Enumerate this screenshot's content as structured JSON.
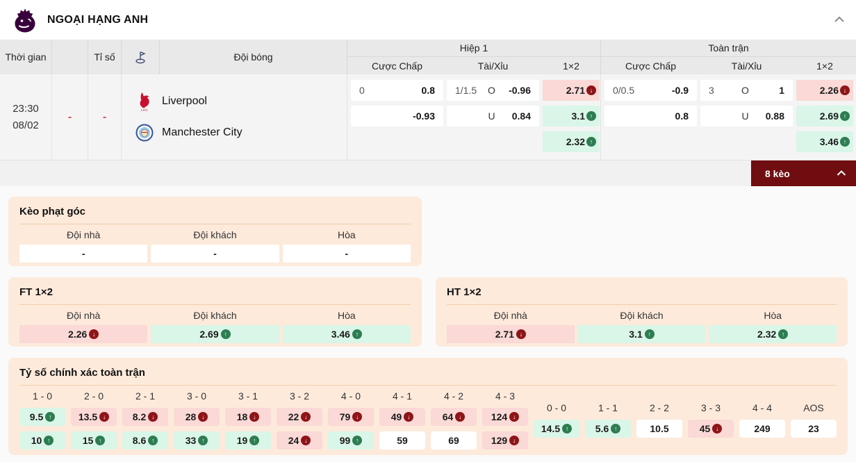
{
  "league": {
    "title": "NGOẠI HẠNG ANH"
  },
  "table": {
    "headers": {
      "time": "Thời gian",
      "score": "Tỉ số",
      "team": "Đội bóng",
      "half1": "Hiệp 1",
      "full": "Toàn trận",
      "handicap": "Cược Chấp",
      "overunder": "Tài/Xỉu",
      "onextwo": "1×2"
    },
    "match": {
      "time": "23:30",
      "date": "08/02",
      "dash1": "-",
      "dash2": "-",
      "home": "Liverpool",
      "away": "Manchester City",
      "h1": {
        "hc_line": "0",
        "hc_home": "0.8",
        "hc_away": "-0.93",
        "ou_line": "1/1.5",
        "o_label": "O",
        "o_odds": "-0.96",
        "u_label": "U",
        "u_odds": "0.84",
        "x2": [
          {
            "v": "2.71",
            "dir": "down"
          },
          {
            "v": "3.1",
            "dir": "up"
          },
          {
            "v": "2.32",
            "dir": "up"
          }
        ]
      },
      "ft": {
        "hc_line": "0/0.5",
        "hc_home": "-0.9",
        "hc_away": "0.8",
        "ou_line": "3",
        "o_label": "O",
        "o_odds": "1",
        "u_label": "U",
        "u_odds": "0.88",
        "x2": [
          {
            "v": "2.26",
            "dir": "down"
          },
          {
            "v": "2.69",
            "dir": "up"
          },
          {
            "v": "3.46",
            "dir": "up"
          }
        ]
      }
    }
  },
  "keo_bar": {
    "label": "8 kèo"
  },
  "corner": {
    "title": "Kèo phạt góc",
    "cols": {
      "home": "Đội nhà",
      "away": "Đội khách",
      "draw": "Hòa"
    },
    "values": [
      "-",
      "-",
      "-"
    ]
  },
  "ft1x2": {
    "title": "FT 1×2",
    "cols": {
      "home": "Đội nhà",
      "away": "Đội khách",
      "draw": "Hòa"
    },
    "cells": [
      {
        "v": "2.26",
        "dir": "down"
      },
      {
        "v": "2.69",
        "dir": "up"
      },
      {
        "v": "3.46",
        "dir": "up"
      }
    ]
  },
  "ht1x2": {
    "title": "HT 1×2",
    "cols": {
      "home": "Đội nhà",
      "away": "Đội khách",
      "draw": "Hòa"
    },
    "cells": [
      {
        "v": "2.71",
        "dir": "down"
      },
      {
        "v": "3.1",
        "dir": "up"
      },
      {
        "v": "2.32",
        "dir": "up"
      }
    ]
  },
  "correct_score": {
    "title": "Tỷ số chính xác toàn trận",
    "win_columns": [
      {
        "score": "1 - 0",
        "top": {
          "v": "9.5",
          "dir": "up"
        },
        "bottom": {
          "v": "10",
          "dir": "up"
        }
      },
      {
        "score": "2 - 0",
        "top": {
          "v": "13.5",
          "dir": "down"
        },
        "bottom": {
          "v": "15",
          "dir": "up"
        }
      },
      {
        "score": "2 - 1",
        "top": {
          "v": "8.2",
          "dir": "down"
        },
        "bottom": {
          "v": "8.6",
          "dir": "up"
        }
      },
      {
        "score": "3 - 0",
        "top": {
          "v": "28",
          "dir": "down"
        },
        "bottom": {
          "v": "33",
          "dir": "up"
        }
      },
      {
        "score": "3 - 1",
        "top": {
          "v": "18",
          "dir": "down"
        },
        "bottom": {
          "v": "19",
          "dir": "up"
        }
      },
      {
        "score": "3 - 2",
        "top": {
          "v": "22",
          "dir": "down"
        },
        "bottom": {
          "v": "24",
          "dir": "down"
        }
      },
      {
        "score": "4 - 0",
        "top": {
          "v": "79",
          "dir": "down"
        },
        "bottom": {
          "v": "99",
          "dir": "up"
        }
      },
      {
        "score": "4 - 1",
        "top": {
          "v": "49",
          "dir": "down"
        },
        "bottom": {
          "v": "59",
          "dir": "none"
        }
      },
      {
        "score": "4 - 2",
        "top": {
          "v": "64",
          "dir": "down"
        },
        "bottom": {
          "v": "69",
          "dir": "none"
        }
      },
      {
        "score": "4 - 3",
        "top": {
          "v": "124",
          "dir": "down"
        },
        "bottom": {
          "v": "129",
          "dir": "down"
        }
      }
    ],
    "draw_columns": [
      {
        "score": "0 - 0",
        "cell": {
          "v": "14.5",
          "dir": "up"
        }
      },
      {
        "score": "1 - 1",
        "cell": {
          "v": "5.6",
          "dir": "up"
        }
      },
      {
        "score": "2 - 2",
        "cell": {
          "v": "10.5",
          "dir": "none"
        }
      },
      {
        "score": "3 - 3",
        "cell": {
          "v": "45",
          "dir": "down"
        }
      },
      {
        "score": "4 - 4",
        "cell": {
          "v": "249",
          "dir": "none"
        }
      },
      {
        "score": "AOS",
        "cell": {
          "v": "23",
          "dir": "none"
        }
      }
    ]
  },
  "colors": {
    "accent_dark_red": "#6f0d10",
    "badge_down": "#8e1418",
    "badge_up": "#2e7d52",
    "cell_pink": "#fad9d6",
    "cell_green": "#d9f6e8",
    "card_peach": "#fdeadb",
    "pl_purple": "#38003c",
    "dash_red": "#e5484d"
  }
}
